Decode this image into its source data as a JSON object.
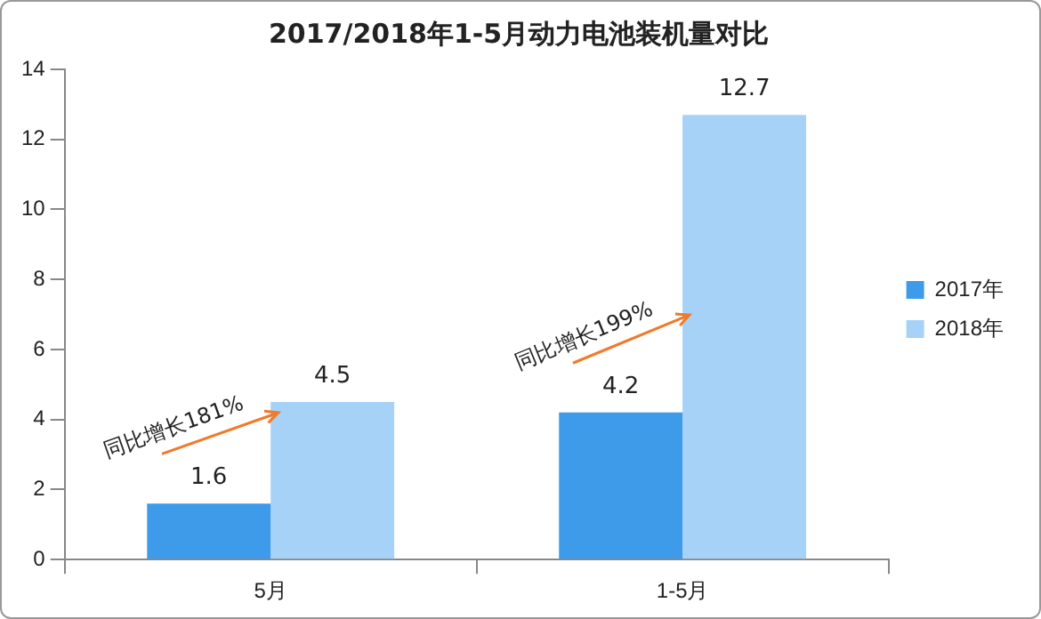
{
  "chart_data": {
    "type": "bar",
    "title": "2017/2018年1-5月动力电池装机量对比",
    "categories": [
      "5月",
      "1-5月"
    ],
    "series": [
      {
        "name": "2017年",
        "color": "#3d9be9",
        "values": [
          1.6,
          4.2
        ]
      },
      {
        "name": "2018年",
        "color": "#a6d2f7",
        "values": [
          4.5,
          12.7
        ]
      }
    ],
    "ylim": [
      0,
      14
    ],
    "yticks": [
      0,
      2,
      4,
      6,
      8,
      10,
      12,
      14
    ],
    "grid": false,
    "legend": "right",
    "data_labels": true,
    "annotations": [
      {
        "text": "同比增长181%",
        "x": "5月",
        "y": 4.2
      },
      {
        "text": "同比增长199%",
        "x": "1-5月",
        "y": 7
      }
    ]
  }
}
